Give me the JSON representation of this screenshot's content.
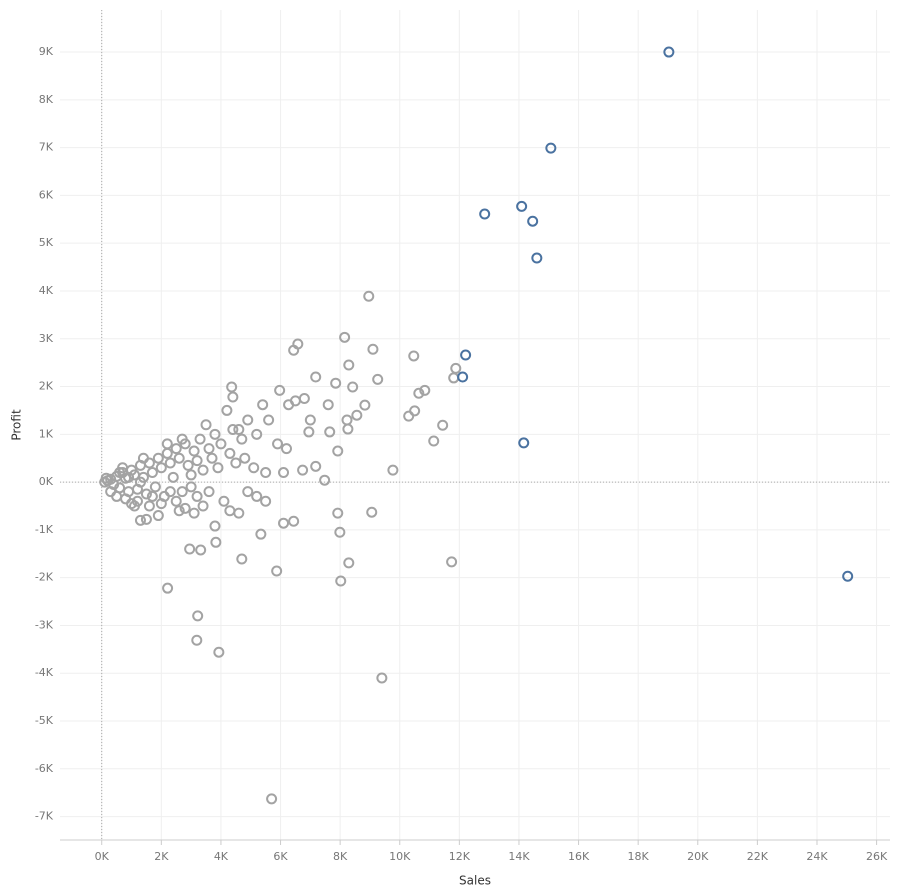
{
  "chart_data": {
    "type": "scatter",
    "x_label": "Sales",
    "y_label": "Profit",
    "xlim": [
      -1400,
      26450
    ],
    "ylim": [
      -7490,
      9880
    ],
    "grid": true,
    "xticks": [
      {
        "value": 0,
        "label": "0K"
      },
      {
        "value": 2000,
        "label": "2K"
      },
      {
        "value": 4000,
        "label": "4K"
      },
      {
        "value": 6000,
        "label": "6K"
      },
      {
        "value": 8000,
        "label": "8K"
      },
      {
        "value": 10000,
        "label": "10K"
      },
      {
        "value": 12000,
        "label": "12K"
      },
      {
        "value": 14000,
        "label": "14K"
      },
      {
        "value": 16000,
        "label": "16K"
      },
      {
        "value": 18000,
        "label": "18K"
      },
      {
        "value": 20000,
        "label": "20K"
      },
      {
        "value": 22000,
        "label": "22K"
      },
      {
        "value": 24000,
        "label": "24K"
      },
      {
        "value": 26000,
        "label": "26K"
      }
    ],
    "yticks": [
      {
        "value": -7000,
        "label": "-7K"
      },
      {
        "value": -6000,
        "label": "-6K"
      },
      {
        "value": -5000,
        "label": "-5K"
      },
      {
        "value": -4000,
        "label": "-4K"
      },
      {
        "value": -3000,
        "label": "-3K"
      },
      {
        "value": -2000,
        "label": "-2K"
      },
      {
        "value": -1000,
        "label": "-1K"
      },
      {
        "value": 0,
        "label": "0K"
      },
      {
        "value": 1000,
        "label": "1K"
      },
      {
        "value": 2000,
        "label": "2K"
      },
      {
        "value": 3000,
        "label": "3K"
      },
      {
        "value": 4000,
        "label": "4K"
      },
      {
        "value": 5000,
        "label": "5K"
      },
      {
        "value": 6000,
        "label": "6K"
      },
      {
        "value": 7000,
        "label": "7K"
      },
      {
        "value": 8000,
        "label": "8K"
      },
      {
        "value": 9000,
        "label": "9K"
      }
    ],
    "series": [
      {
        "color": "#a3a3a3",
        "x": [
          8960,
          8150,
          6580,
          6440,
          10470,
          9100,
          11880,
          11810,
          9260,
          10840,
          10640,
          10500,
          10300,
          11440,
          11140,
          9770,
          9400,
          9060,
          7920,
          7990,
          8290,
          8020,
          11740,
          5700,
          3930,
          3220,
          3190,
          2210,
          5870,
          4700,
          5340,
          6440,
          6100,
          3830,
          3800,
          3320,
          2950,
          7180,
          7480,
          6740,
          4360,
          4400,
          5970,
          7180,
          7850,
          8420,
          8830,
          8560,
          8260,
          7920,
          6950,
          7650,
          8290,
          8230,
          7600,
          7000,
          6270,
          6500,
          5400,
          6800,
          5200,
          5900,
          6200,
          5600,
          4900,
          4600,
          4800,
          5100,
          5500,
          6100,
          4300,
          4100,
          4600,
          3100,
          2800,
          1300,
          1500,
          1900,
          1100,
          3200,
          2500,
          3600,
          4900,
          5200,
          5500,
          100,
          200,
          300,
          400,
          500,
          600,
          700,
          800,
          900,
          1000,
          1100,
          1200,
          1300,
          1400,
          1500,
          1600,
          1700,
          1800,
          1900,
          2000,
          2100,
          2200,
          2300,
          2400,
          2500,
          2600,
          2700,
          2800,
          2900,
          3000,
          3100,
          3200,
          3300,
          3400,
          3500,
          3600,
          3700,
          3800,
          3900,
          4000,
          4200,
          4300,
          4400,
          4500,
          4700,
          500,
          800,
          1200,
          1600,
          2000,
          2600,
          300,
          700,
          1400,
          2200,
          2700,
          3000,
          3400,
          1000,
          150,
          600,
          900,
          1300,
          1700,
          2300
        ],
        "y": [
          3890,
          3030,
          2890,
          2760,
          2640,
          2780,
          2380,
          2180,
          2150,
          1920,
          1860,
          1490,
          1380,
          1190,
          860,
          250,
          -4100,
          -630,
          -650,
          -1050,
          -1690,
          -2070,
          -1670,
          -6630,
          -3560,
          -2800,
          -3310,
          -2220,
          -1860,
          -1610,
          -1090,
          -820,
          -860,
          -1260,
          -920,
          -1420,
          -1400,
          330,
          40,
          250,
          1990,
          1780,
          1920,
          2200,
          2070,
          1990,
          1610,
          1400,
          1110,
          650,
          1050,
          1050,
          2450,
          1300,
          1620,
          1300,
          1620,
          1700,
          1620,
          1750,
          1000,
          800,
          700,
          1300,
          1300,
          1100,
          500,
          300,
          200,
          200,
          -600,
          -400,
          -650,
          -650,
          -550,
          -800,
          -780,
          -700,
          -500,
          -300,
          -400,
          -200,
          -200,
          -300,
          -400,
          0,
          30,
          60,
          -50,
          120,
          -120,
          200,
          80,
          -200,
          250,
          150,
          -150,
          350,
          100,
          -250,
          400,
          200,
          -100,
          500,
          300,
          -300,
          600,
          400,
          100,
          700,
          500,
          -200,
          800,
          350,
          150,
          650,
          450,
          900,
          250,
          1200,
          700,
          500,
          1000,
          300,
          800,
          1500,
          600,
          1100,
          400,
          900,
          -300,
          -350,
          -400,
          -500,
          -450,
          -600,
          -200,
          300,
          500,
          800,
          900,
          -100,
          -500,
          -450,
          80,
          200,
          100,
          0,
          -300,
          -200
        ]
      },
      {
        "color": "#4a72a0",
        "x": [
          19030,
          15070,
          12850,
          14090,
          14460,
          14600,
          12210,
          12110,
          14160,
          25030
        ],
        "y": [
          9000,
          6990,
          5610,
          5770,
          5460,
          4690,
          2660,
          2200,
          820,
          -1970
        ]
      }
    ]
  }
}
